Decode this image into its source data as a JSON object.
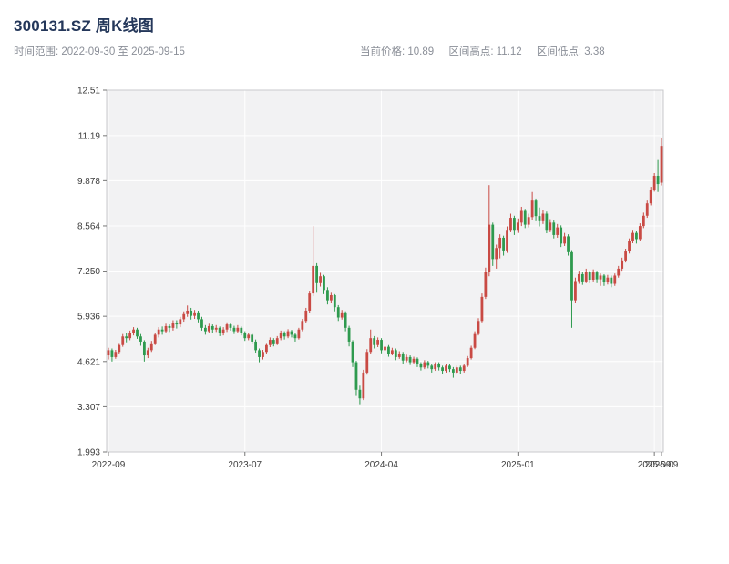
{
  "header": {
    "title": "300131.SZ 周K线图",
    "time_range": "时间范围: 2022-09-30 至 2025-09-15",
    "current_price": "当前价格: 10.89",
    "range_high": "区间高点: 11.12",
    "range_low": "区间低点: 3.38"
  },
  "colors": {
    "up": "#c94a44",
    "down": "#2e9a4e",
    "plot_bg": "#f2f2f3",
    "grid": "#ffffff",
    "axis_border": "#c9cacd",
    "tick": "#777777",
    "tick_text": "#3c3c3c",
    "title": "#24375a",
    "subtitle": "#8b8f98"
  },
  "chart_data": {
    "type": "candlestick",
    "symbol": "300131.SZ",
    "interval": "weekly",
    "title": "300131.SZ 周K线图",
    "date_range": {
      "start": "2022-09-30",
      "end": "2025-09-15"
    },
    "current_price": 10.89,
    "range_high": 11.12,
    "range_low": 3.38,
    "ylim": [
      1.993,
      12.51
    ],
    "y_ticks": [
      "1.993",
      "3.307",
      "4.621",
      "5.936",
      "7.250",
      "8.564",
      "9.878",
      "11.19",
      "12.51"
    ],
    "x_ticks": [
      {
        "index": 0,
        "label": "2022-09"
      },
      {
        "index": 38,
        "label": "2023-07"
      },
      {
        "index": 76,
        "label": "2024-04"
      },
      {
        "index": 114,
        "label": "2025-01"
      },
      {
        "index": 152,
        "label": "2025-09"
      },
      {
        "index": 154,
        "label": "2025-09"
      }
    ],
    "ohlc_columns": [
      "open",
      "high",
      "low",
      "close"
    ],
    "ohlc": [
      [
        4.8,
        5.02,
        4.68,
        4.95
      ],
      [
        4.95,
        5.0,
        4.62,
        4.75
      ],
      [
        4.75,
        4.96,
        4.7,
        4.9
      ],
      [
        4.9,
        5.16,
        4.85,
        5.1
      ],
      [
        5.1,
        5.42,
        5.05,
        5.35
      ],
      [
        5.35,
        5.45,
        5.18,
        5.3
      ],
      [
        5.3,
        5.52,
        5.24,
        5.45
      ],
      [
        5.45,
        5.62,
        5.38,
        5.55
      ],
      [
        5.55,
        5.6,
        5.28,
        5.35
      ],
      [
        5.35,
        5.42,
        5.08,
        5.2
      ],
      [
        5.2,
        5.24,
        4.62,
        4.8
      ],
      [
        4.8,
        5.02,
        4.72,
        4.95
      ],
      [
        4.95,
        5.22,
        4.9,
        5.15
      ],
      [
        5.15,
        5.46,
        5.1,
        5.4
      ],
      [
        5.4,
        5.62,
        5.32,
        5.55
      ],
      [
        5.55,
        5.64,
        5.4,
        5.5
      ],
      [
        5.5,
        5.72,
        5.44,
        5.65
      ],
      [
        5.65,
        5.7,
        5.48,
        5.6
      ],
      [
        5.6,
        5.82,
        5.52,
        5.75
      ],
      [
        5.75,
        5.82,
        5.58,
        5.7
      ],
      [
        5.7,
        5.92,
        5.62,
        5.85
      ],
      [
        5.85,
        6.08,
        5.78,
        6.0
      ],
      [
        6.0,
        6.25,
        5.92,
        6.1
      ],
      [
        6.1,
        6.18,
        5.84,
        5.95
      ],
      [
        5.95,
        6.12,
        5.86,
        6.05
      ],
      [
        6.05,
        6.1,
        5.76,
        5.85
      ],
      [
        5.85,
        5.92,
        5.52,
        5.6
      ],
      [
        5.6,
        5.68,
        5.4,
        5.5
      ],
      [
        5.5,
        5.72,
        5.44,
        5.65
      ],
      [
        5.65,
        5.7,
        5.46,
        5.55
      ],
      [
        5.55,
        5.68,
        5.48,
        5.6
      ],
      [
        5.6,
        5.64,
        5.36,
        5.45
      ],
      [
        5.45,
        5.62,
        5.38,
        5.55
      ],
      [
        5.55,
        5.76,
        5.48,
        5.7
      ],
      [
        5.7,
        5.74,
        5.52,
        5.6
      ],
      [
        5.6,
        5.66,
        5.42,
        5.5
      ],
      [
        5.5,
        5.68,
        5.44,
        5.6
      ],
      [
        5.6,
        5.64,
        5.38,
        5.45
      ],
      [
        5.45,
        5.5,
        5.22,
        5.3
      ],
      [
        5.3,
        5.46,
        5.24,
        5.4
      ],
      [
        5.4,
        5.44,
        5.12,
        5.2
      ],
      [
        5.2,
        5.26,
        4.88,
        4.95
      ],
      [
        4.95,
        5.0,
        4.6,
        4.75
      ],
      [
        4.75,
        4.96,
        4.68,
        4.9
      ],
      [
        4.9,
        5.16,
        4.84,
        5.1
      ],
      [
        5.1,
        5.32,
        5.04,
        5.25
      ],
      [
        5.25,
        5.3,
        5.06,
        5.15
      ],
      [
        5.15,
        5.36,
        5.1,
        5.3
      ],
      [
        5.3,
        5.52,
        5.24,
        5.45
      ],
      [
        5.45,
        5.5,
        5.26,
        5.35
      ],
      [
        5.35,
        5.56,
        5.3,
        5.5
      ],
      [
        5.5,
        5.54,
        5.32,
        5.4
      ],
      [
        5.4,
        5.46,
        5.2,
        5.3
      ],
      [
        5.3,
        5.6,
        5.26,
        5.55
      ],
      [
        5.55,
        5.86,
        5.5,
        5.8
      ],
      [
        5.8,
        6.18,
        5.74,
        6.1
      ],
      [
        6.1,
        6.68,
        6.04,
        6.6
      ],
      [
        6.6,
        8.56,
        6.52,
        7.4
      ],
      [
        7.4,
        7.48,
        6.62,
        6.9
      ],
      [
        6.9,
        7.2,
        6.8,
        7.1
      ],
      [
        7.1,
        7.14,
        6.58,
        6.7
      ],
      [
        6.7,
        6.78,
        6.28,
        6.4
      ],
      [
        6.4,
        6.62,
        6.32,
        6.55
      ],
      [
        6.55,
        6.58,
        6.08,
        6.2
      ],
      [
        6.2,
        6.26,
        5.8,
        5.9
      ],
      [
        5.9,
        6.12,
        5.84,
        6.05
      ],
      [
        6.05,
        6.08,
        5.5,
        5.6
      ],
      [
        5.6,
        5.66,
        5.06,
        5.2
      ],
      [
        5.2,
        5.24,
        4.46,
        4.6
      ],
      [
        4.6,
        4.64,
        3.62,
        3.8
      ],
      [
        3.8,
        3.92,
        3.38,
        3.55
      ],
      [
        3.55,
        4.38,
        3.5,
        4.3
      ],
      [
        4.3,
        4.98,
        4.24,
        4.9
      ],
      [
        4.9,
        5.55,
        4.84,
        5.3
      ],
      [
        5.3,
        5.36,
        5.0,
        5.1
      ],
      [
        5.1,
        5.32,
        5.04,
        5.25
      ],
      [
        5.25,
        5.3,
        4.86,
        4.95
      ],
      [
        4.95,
        5.12,
        4.88,
        5.05
      ],
      [
        5.05,
        5.1,
        4.76,
        4.85
      ],
      [
        4.85,
        5.02,
        4.8,
        4.95
      ],
      [
        4.95,
        5.0,
        4.66,
        4.75
      ],
      [
        4.75,
        4.92,
        4.7,
        4.85
      ],
      [
        4.85,
        4.9,
        4.56,
        4.65
      ],
      [
        4.65,
        4.82,
        4.6,
        4.75
      ],
      [
        4.75,
        4.8,
        4.52,
        4.6
      ],
      [
        4.6,
        4.76,
        4.54,
        4.7
      ],
      [
        4.7,
        4.74,
        4.46,
        4.55
      ],
      [
        4.55,
        4.6,
        4.36,
        4.45
      ],
      [
        4.45,
        4.66,
        4.4,
        4.6
      ],
      [
        4.6,
        4.64,
        4.42,
        4.5
      ],
      [
        4.5,
        4.56,
        4.3,
        4.4
      ],
      [
        4.4,
        4.6,
        4.35,
        4.55
      ],
      [
        4.55,
        4.6,
        4.36,
        4.45
      ],
      [
        4.45,
        4.5,
        4.26,
        4.35
      ],
      [
        4.35,
        4.56,
        4.3,
        4.5
      ],
      [
        4.5,
        4.54,
        4.32,
        4.4
      ],
      [
        4.4,
        4.46,
        4.15,
        4.3
      ],
      [
        4.3,
        4.5,
        4.25,
        4.45
      ],
      [
        4.45,
        4.5,
        4.26,
        4.35
      ],
      [
        4.35,
        4.56,
        4.3,
        4.5
      ],
      [
        4.5,
        4.78,
        4.46,
        4.72
      ],
      [
        4.72,
        5.08,
        4.68,
        5.02
      ],
      [
        5.02,
        5.5,
        4.98,
        5.42
      ],
      [
        5.42,
        5.88,
        5.38,
        5.8
      ],
      [
        5.8,
        6.6,
        5.76,
        6.5
      ],
      [
        6.5,
        7.35,
        6.44,
        7.22
      ],
      [
        7.22,
        9.75,
        7.1,
        8.6
      ],
      [
        8.6,
        8.66,
        7.4,
        7.6
      ],
      [
        7.6,
        8.02,
        7.32,
        7.92
      ],
      [
        7.92,
        8.32,
        7.62,
        8.22
      ],
      [
        8.22,
        8.28,
        7.7,
        7.85
      ],
      [
        7.85,
        8.55,
        7.78,
        8.45
      ],
      [
        8.45,
        8.92,
        8.38,
        8.8
      ],
      [
        8.8,
        8.86,
        8.3,
        8.45
      ],
      [
        8.45,
        8.78,
        8.36,
        8.66
      ],
      [
        8.66,
        9.12,
        8.56,
        9.0
      ],
      [
        9.0,
        9.06,
        8.5,
        8.6
      ],
      [
        8.6,
        8.92,
        8.52,
        8.82
      ],
      [
        8.82,
        9.55,
        8.74,
        9.3
      ],
      [
        9.3,
        9.36,
        8.7,
        8.85
      ],
      [
        8.85,
        9.1,
        8.55,
        8.7
      ],
      [
        8.7,
        9.02,
        8.62,
        8.92
      ],
      [
        8.92,
        8.98,
        8.35,
        8.45
      ],
      [
        8.45,
        8.76,
        8.38,
        8.66
      ],
      [
        8.66,
        8.72,
        8.2,
        8.3
      ],
      [
        8.3,
        8.62,
        8.22,
        8.52
      ],
      [
        8.52,
        8.58,
        7.95,
        8.05
      ],
      [
        8.05,
        8.36,
        7.98,
        8.26
      ],
      [
        8.26,
        8.32,
        7.7,
        7.8
      ],
      [
        7.8,
        7.86,
        5.6,
        6.4
      ],
      [
        6.4,
        7.06,
        6.32,
        6.96
      ],
      [
        6.96,
        7.26,
        6.88,
        7.16
      ],
      [
        7.16,
        7.22,
        6.85,
        6.95
      ],
      [
        6.95,
        7.32,
        6.9,
        7.22
      ],
      [
        7.22,
        7.26,
        6.9,
        7.0
      ],
      [
        7.0,
        7.3,
        6.95,
        7.21
      ],
      [
        7.21,
        7.26,
        6.9,
        7.01
      ],
      [
        7.01,
        7.18,
        6.82,
        7.12
      ],
      [
        7.12,
        7.16,
        6.82,
        6.92
      ],
      [
        6.92,
        7.14,
        6.86,
        7.06
      ],
      [
        7.06,
        7.12,
        6.78,
        6.88
      ],
      [
        6.88,
        7.18,
        6.82,
        7.12
      ],
      [
        7.12,
        7.4,
        7.06,
        7.32
      ],
      [
        7.32,
        7.64,
        7.26,
        7.56
      ],
      [
        7.56,
        7.9,
        7.5,
        7.82
      ],
      [
        7.82,
        8.2,
        7.76,
        8.12
      ],
      [
        8.12,
        8.45,
        8.06,
        8.36
      ],
      [
        8.36,
        8.42,
        8.05,
        8.18
      ],
      [
        8.18,
        8.64,
        8.12,
        8.56
      ],
      [
        8.56,
        8.95,
        8.5,
        8.86
      ],
      [
        8.86,
        9.3,
        8.8,
        9.22
      ],
      [
        9.22,
        9.7,
        9.16,
        9.62
      ],
      [
        9.62,
        10.1,
        9.56,
        10.02
      ],
      [
        10.02,
        10.48,
        9.55,
        9.78
      ],
      [
        9.82,
        11.12,
        9.74,
        10.89
      ]
    ]
  }
}
